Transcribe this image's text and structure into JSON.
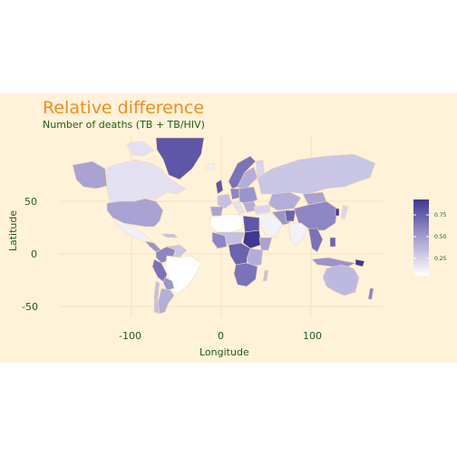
{
  "title": "Relative difference",
  "subtitle": "Number of deaths (TB + TB/HIV)",
  "xlabel": "Longitude",
  "ylabel": "Latitude",
  "x_ticks": [
    "-100",
    "0",
    "100"
  ],
  "y_ticks": [
    "50",
    "0",
    "-50"
  ],
  "legend": {
    "ticks": [
      "0.75",
      "0.50",
      "0.25"
    ],
    "color_low": "#ffffff",
    "color_high": "#3e3891"
  },
  "colors": {
    "background": "#fff2d9",
    "title": "#f28c1e",
    "text": "#1f5c17"
  }
}
